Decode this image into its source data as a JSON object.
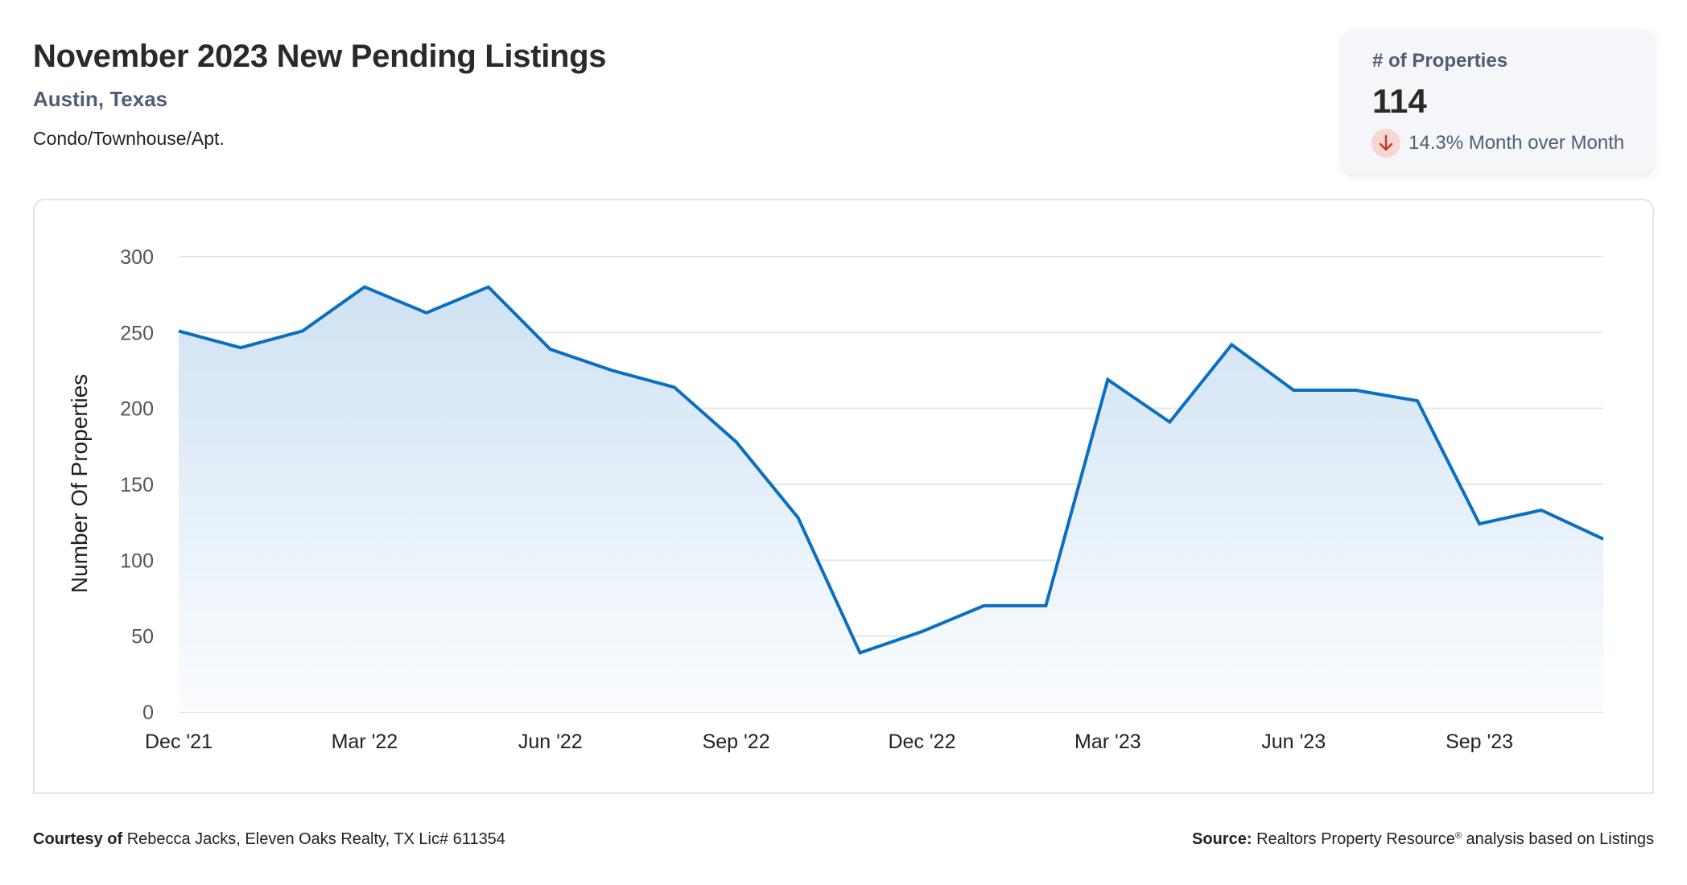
{
  "header": {
    "title": "November 2023 New Pending Listings",
    "location": "Austin, Texas",
    "property_type": "Condo/Townhouse/Apt."
  },
  "kpi": {
    "label": "# of Properties",
    "value": "114",
    "change_icon": "arrow-down-icon",
    "change_text": "14.3% Month over Month",
    "change_direction": "down",
    "colors": {
      "icon_bg": "#f8d7d3",
      "icon_fg": "#c0392b"
    }
  },
  "footer": {
    "courtesy_label": "Courtesy of",
    "courtesy_text": "Rebecca Jacks, Eleven Oaks Realty, TX Lic# 611354",
    "source_label": "Source:",
    "source_text_a": "Realtors Property Resource",
    "source_mark": "®",
    "source_text_b": " analysis based on Listings"
  },
  "colors": {
    "line": "#0b6fc1",
    "area_top": "#cfe2f3",
    "area_bottom": "#fbfdff",
    "grid": "#e4e6ea"
  },
  "chart_data": {
    "type": "area",
    "title": "November 2023 New Pending Listings",
    "xlabel": "",
    "ylabel": "Number Of Properties",
    "ylim": [
      0,
      300
    ],
    "yticks": [
      0,
      50,
      100,
      150,
      200,
      250,
      300
    ],
    "grid": true,
    "legend": null,
    "x": [
      "Dec '21",
      "Jan '22",
      "Feb '22",
      "Mar '22",
      "Apr '22",
      "May '22",
      "Jun '22",
      "Jul '22",
      "Aug '22",
      "Sep '22",
      "Oct '22",
      "Nov '22",
      "Dec '22",
      "Jan '23",
      "Feb '23",
      "Mar '23",
      "Apr '23",
      "May '23",
      "Jun '23",
      "Jul '23",
      "Aug '23",
      "Sep '23",
      "Oct '23",
      "Nov '23"
    ],
    "xtick_labels": [
      {
        "index": 0,
        "label": "Dec '21"
      },
      {
        "index": 3,
        "label": "Mar '22"
      },
      {
        "index": 6,
        "label": "Jun '22"
      },
      {
        "index": 9,
        "label": "Sep '22"
      },
      {
        "index": 12,
        "label": "Dec '22"
      },
      {
        "index": 15,
        "label": "Mar '23"
      },
      {
        "index": 18,
        "label": "Jun '23"
      },
      {
        "index": 21,
        "label": "Sep '23"
      }
    ],
    "series": [
      {
        "name": "Number Of Properties",
        "values": [
          251,
          240,
          251,
          280,
          263,
          280,
          239,
          225,
          214,
          178,
          128,
          39,
          53,
          70,
          70,
          219,
          191,
          242,
          212,
          212,
          205,
          124,
          133,
          114
        ]
      }
    ]
  }
}
